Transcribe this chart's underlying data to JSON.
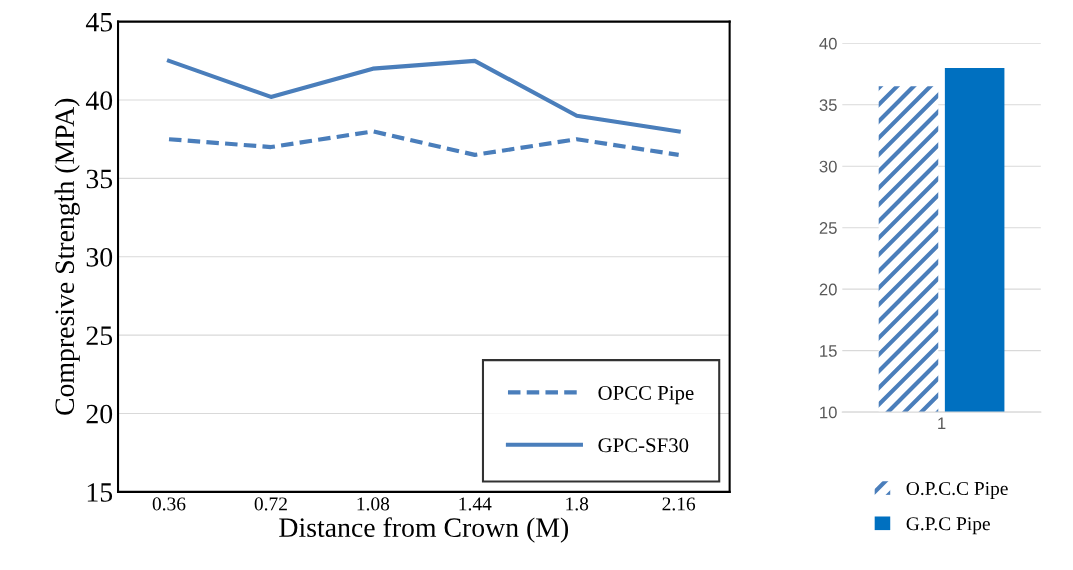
{
  "chart_data": [
    {
      "type": "line",
      "xlabel": "Distance from Crown (M)",
      "ylabel": "Compresive Strength (MPA)",
      "categories": [
        "0.36",
        "0.72",
        "1.08",
        "1.44",
        "1.8",
        "2.16"
      ],
      "ylim": [
        15,
        45
      ],
      "yticks": [
        15,
        20,
        25,
        30,
        35,
        40,
        45
      ],
      "grid": "y",
      "legend": "bottom right",
      "marker": "none",
      "series": [
        {
          "name": "OPCC Pipe",
          "color": "#4a7ebb",
          "line_style": "dashed",
          "values": [
            37.5,
            37.0,
            38.0,
            36.5,
            37.5,
            36.5
          ]
        },
        {
          "name": "GPC-SF30",
          "color": "#4a7ebb",
          "line_style": "solid",
          "values": [
            42.5,
            40.2,
            42.0,
            42.5,
            39.0,
            38.0
          ]
        }
      ]
    },
    {
      "type": "bar",
      "categories": [
        "1"
      ],
      "ylim": [
        10,
        40
      ],
      "yticks": [
        10,
        15,
        20,
        25,
        30,
        35,
        40
      ],
      "grid": "y",
      "legend": "bottom",
      "series": [
        {
          "name": "O.P.C.C Pipe",
          "color": "#4a7ebb",
          "values": [
            36.5
          ]
        },
        {
          "name": "G.P.C Pipe",
          "color": "#0070c0",
          "values": [
            38
          ]
        }
      ]
    }
  ]
}
